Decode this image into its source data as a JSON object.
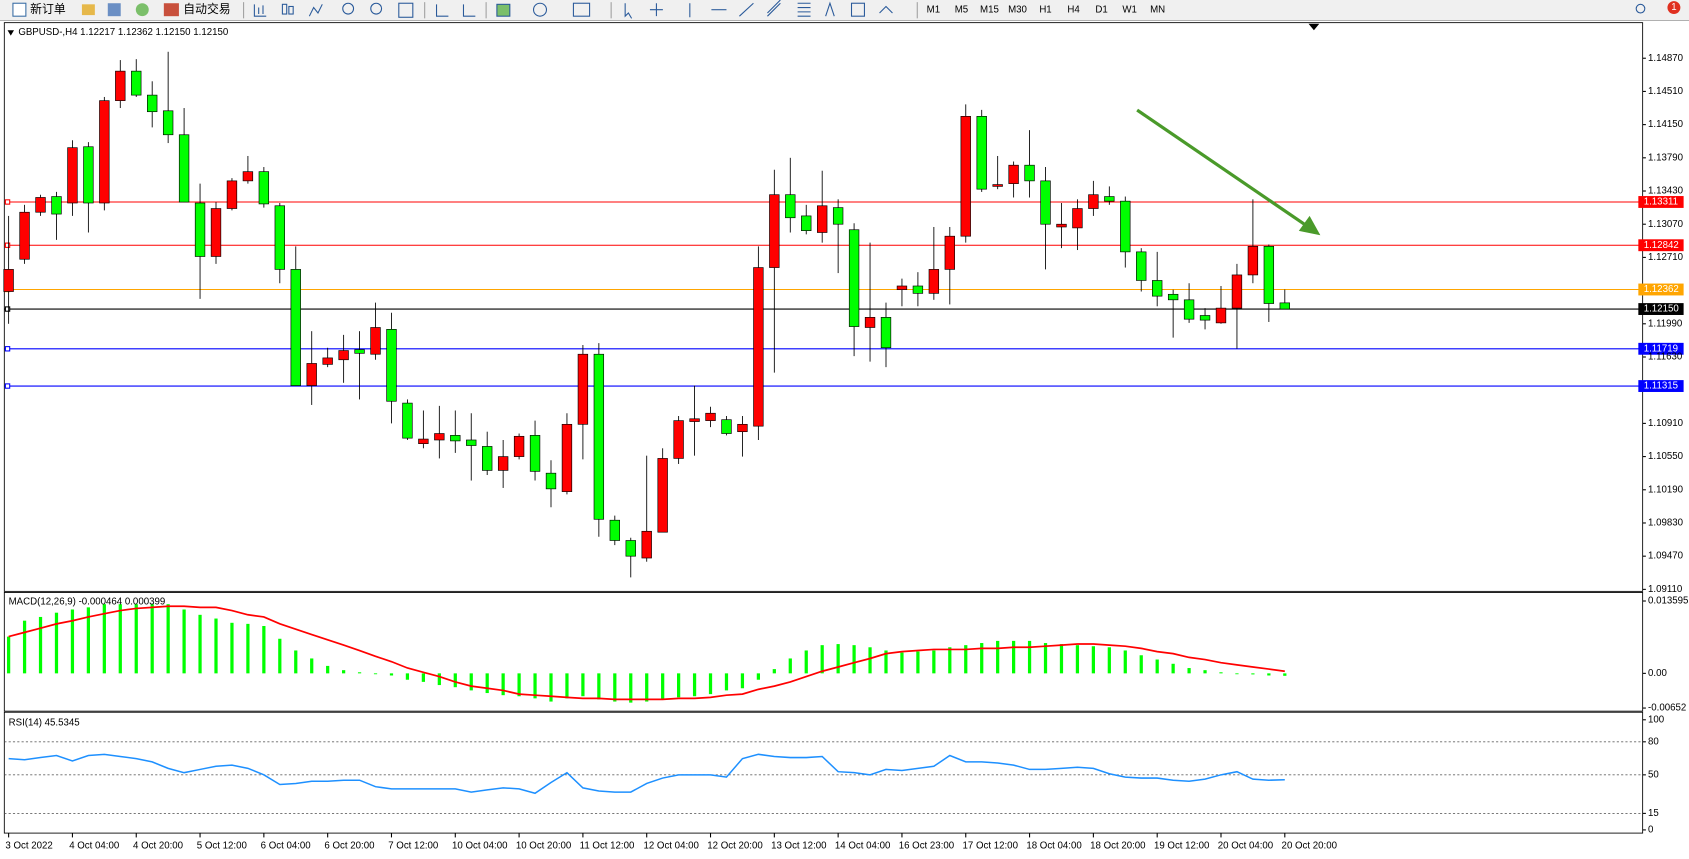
{
  "toolbar": {
    "new_order": "新订单",
    "auto_trading": "自动交易",
    "timeframes": [
      "M1",
      "M5",
      "M15",
      "M30",
      "H1",
      "H4",
      "D1",
      "W1",
      "MN"
    ],
    "notifications": "1"
  },
  "chart_data": [
    {
      "type": "candlestick",
      "title": "GBPUSD-,H4  1.12217 1.12362 1.12150 1.12150",
      "up_color": "#ff0000",
      "down_color": "#00ff00",
      "x": [
        "3 Oct 2022",
        null,
        null,
        null,
        "4 Oct 04:00",
        null,
        null,
        null,
        "4 Oct 20:00",
        null,
        null,
        null,
        "5 Oct 12:00",
        null,
        null,
        null,
        "6 Oct 04:00",
        null,
        null,
        null,
        "6 Oct 20:00",
        null,
        null,
        null,
        "7 Oct 12:00",
        null,
        null,
        null,
        "10 Oct 04:00",
        null,
        null,
        null,
        "10 Oct 20:00",
        null,
        null,
        null,
        "11 Oct 12:00",
        null,
        null,
        null,
        "12 Oct 04:00",
        null,
        null,
        null,
        "12 Oct 20:00",
        null,
        null,
        null,
        "13 Oct 12:00",
        null,
        null,
        null,
        "14 Oct 04:00",
        null,
        null,
        null,
        "16 Oct 23:00",
        null,
        null,
        null,
        "17 Oct 12:00",
        null,
        null,
        null,
        "18 Oct 04:00",
        null,
        null,
        null,
        "18 Oct 20:00",
        null,
        null,
        null,
        "19 Oct 12:00",
        null,
        null,
        null,
        "20 Oct 04:00",
        null,
        null,
        null,
        "20 Oct 20:00"
      ],
      "open": [
        1.1234,
        1.1269,
        1.132,
        1.1337,
        1.133,
        1.1391,
        1.133,
        1.1441,
        1.1473,
        1.1447,
        1.143,
        1.1404,
        1.133,
        1.1272,
        1.1324,
        1.1354,
        1.1364,
        1.1327,
        1.1258,
        1.1132,
        1.1155,
        1.116,
        1.1171,
        1.1166,
        1.1193,
        1.1113,
        1.1069,
        1.1073,
        1.1078,
        1.1073,
        1.1066,
        1.104,
        1.1055,
        1.1078,
        1.1037,
        1.1017,
        1.109,
        1.1166,
        1.0986,
        1.0964,
        1.0945,
        1.0973,
        1.1053,
        1.1093,
        1.1094,
        1.1095,
        1.1082,
        1.1088,
        1.126,
        1.1339,
        1.1316,
        1.1298,
        1.1325,
        1.1301,
        1.1195,
        1.1206,
        1.1236,
        1.124,
        1.1232,
        1.1258,
        1.1294,
        1.1424,
        1.1348,
        1.1351,
        1.1371,
        1.1354,
        1.1304,
        1.1303,
        1.1324,
        1.1337,
        1.1332,
        1.1277,
        1.1246,
        1.1231,
        1.1225,
        1.1208,
        1.12,
        1.1216,
        1.1252,
        1.1283,
        1.12217
      ],
      "high": [
        1.1316,
        1.1328,
        1.1339,
        1.1342,
        1.1398,
        1.1396,
        1.1445,
        1.1485,
        1.1486,
        1.1462,
        1.1494,
        1.1433,
        1.1351,
        1.1331,
        1.1357,
        1.1381,
        1.1369,
        1.133,
        1.1283,
        1.1191,
        1.1173,
        1.1187,
        1.1191,
        1.1222,
        1.1211,
        1.1117,
        1.1105,
        1.111,
        1.1105,
        1.1102,
        1.1082,
        1.1073,
        1.108,
        1.1094,
        1.1051,
        1.1102,
        1.1176,
        1.1178,
        1.0991,
        1.0967,
        1.1056,
        1.1064,
        1.1099,
        1.1132,
        1.1109,
        1.1099,
        1.1099,
        1.1283,
        1.1366,
        1.1379,
        1.1328,
        1.1365,
        1.1334,
        1.1308,
        1.1287,
        1.1222,
        1.1248,
        1.1255,
        1.1304,
        1.1304,
        1.1437,
        1.1431,
        1.1381,
        1.1375,
        1.1409,
        1.1369,
        1.133,
        1.1334,
        1.1354,
        1.1348,
        1.1337,
        1.1281,
        1.1277,
        1.1236,
        1.1243,
        1.1216,
        1.124,
        1.1264,
        1.1334,
        1.1285,
        1.12362
      ],
      "low": [
        1.1199,
        1.1264,
        1.1316,
        1.129,
        1.1316,
        1.1298,
        1.1322,
        1.1433,
        1.1445,
        1.1412,
        1.1395,
        1.1331,
        1.1226,
        1.1264,
        1.1322,
        1.1351,
        1.1325,
        1.1243,
        1.1132,
        1.1111,
        1.1152,
        1.1135,
        1.1117,
        1.116,
        1.1091,
        1.1073,
        1.1064,
        1.1053,
        1.1059,
        1.1029,
        1.1035,
        1.1021,
        1.1052,
        1.1029,
        1.1,
        1.1014,
        1.1052,
        1.0968,
        1.0959,
        1.0924,
        1.0941,
        1.0973,
        1.1047,
        1.1056,
        1.1087,
        1.1078,
        1.1055,
        1.1073,
        1.1146,
        1.1298,
        1.1296,
        1.1287,
        1.1254,
        1.1164,
        1.1158,
        1.1152,
        1.1218,
        1.1218,
        1.1225,
        1.122,
        1.1287,
        1.1342,
        1.1345,
        1.1336,
        1.1336,
        1.1258,
        1.1281,
        1.1279,
        1.1316,
        1.1328,
        1.126,
        1.1234,
        1.1218,
        1.1184,
        1.12,
        1.1193,
        1.1199,
        1.1172,
        1.1243,
        1.1201,
        1.1215
      ],
      "close": [
        1.1258,
        1.132,
        1.1336,
        1.1318,
        1.139,
        1.133,
        1.1441,
        1.1473,
        1.1447,
        1.1429,
        1.1404,
        1.1331,
        1.1272,
        1.1324,
        1.1354,
        1.1364,
        1.1329,
        1.1258,
        1.1132,
        1.1156,
        1.1162,
        1.117,
        1.1167,
        1.1195,
        1.1115,
        1.1075,
        1.1074,
        1.108,
        1.1072,
        1.1067,
        1.104,
        1.1055,
        1.1077,
        1.1039,
        1.102,
        1.109,
        1.1166,
        1.0987,
        1.0964,
        1.0947,
        1.0974,
        1.1053,
        1.1094,
        1.1096,
        1.1102,
        1.108,
        1.109,
        1.126,
        1.1339,
        1.1314,
        1.13,
        1.1327,
        1.1307,
        1.1196,
        1.1206,
        1.1173,
        1.124,
        1.1232,
        1.1258,
        1.1294,
        1.1424,
        1.1345,
        1.135,
        1.1371,
        1.1354,
        1.1307,
        1.1307,
        1.1324,
        1.1339,
        1.1332,
        1.1277,
        1.1246,
        1.1229,
        1.1225,
        1.1204,
        1.1203,
        1.1216,
        1.1252,
        1.1283,
        1.1221,
        1.1215
      ],
      "ylim": [
        1.091,
        1.15244
      ],
      "yticks": [
        {
          "value": 1.1487,
          "label": "1.14870"
        },
        {
          "value": 1.1451,
          "label": "1.14510"
        },
        {
          "value": 1.1415,
          "label": "1.14150"
        },
        {
          "value": 1.1379,
          "label": "1.13790"
        },
        {
          "value": 1.1343,
          "label": "1.13430"
        },
        {
          "value": 1.1307,
          "label": "1.13070"
        },
        {
          "value": 1.1271,
          "label": "1.12710"
        },
        {
          "value": 1.1199,
          "label": "1.11990"
        },
        {
          "value": 1.1163,
          "label": "1.11630"
        },
        {
          "value": 1.1091,
          "label": "1.10910"
        },
        {
          "value": 1.1055,
          "label": "1.10550"
        },
        {
          "value": 1.1019,
          "label": "1.10190"
        },
        {
          "value": 1.0983,
          "label": "1.09830"
        },
        {
          "value": 1.0947,
          "label": "1.09470"
        },
        {
          "value": 1.0911,
          "label": "1.09110"
        }
      ],
      "levels": [
        {
          "value": 1.13311,
          "label": "1.13311",
          "color": "#ff0000"
        },
        {
          "value": 1.12842,
          "label": "1.12842",
          "color": "#ff0000"
        },
        {
          "value": 1.12362,
          "label": "1.12362",
          "color": "#ffa500"
        },
        {
          "value": 1.1215,
          "label": "1.12150",
          "color": "#000000"
        },
        {
          "value": 1.11719,
          "label": "1.11719",
          "color": "#0000ff"
        },
        {
          "value": 1.11315,
          "label": "1.11315",
          "color": "#0000ff"
        }
      ]
    },
    {
      "type": "macd",
      "title": "MACD(12,26,9) -0.000464 0.000399",
      "series": [
        {
          "kind": "bar",
          "color": "#00ff00",
          "values": [
            0.0069,
            0.0099,
            0.0106,
            0.0114,
            0.012,
            0.0124,
            0.013,
            0.013,
            0.013,
            0.013,
            0.013,
            0.012,
            0.011,
            0.0103,
            0.0095,
            0.0093,
            0.0089,
            0.0065,
            0.0043,
            0.0028,
            0.0014,
            0.0006,
            0.0002,
            -0.0001,
            -0.0004,
            -0.0012,
            -0.0016,
            -0.0022,
            -0.0026,
            -0.0032,
            -0.0037,
            -0.0041,
            -0.0043,
            -0.0047,
            -0.0053,
            -0.0047,
            -0.0043,
            -0.0049,
            -0.0053,
            -0.0055,
            -0.0053,
            -0.0049,
            -0.0045,
            -0.0043,
            -0.0039,
            -0.0032,
            -0.0028,
            -0.0012,
            0.0008,
            0.0028,
            0.0043,
            0.0053,
            0.0055,
            0.0053,
            0.0049,
            0.0043,
            0.0039,
            0.0041,
            0.0043,
            0.0049,
            0.0053,
            0.0057,
            0.0061,
            0.0061,
            0.0061,
            0.0057,
            0.0055,
            0.0053,
            0.0051,
            0.0049,
            0.0043,
            0.0034,
            0.0026,
            0.0018,
            0.001,
            0.0006,
            0.0002,
            -0.0001,
            -0.0002,
            -0.0004,
            -0.000464
          ]
        },
        {
          "kind": "line",
          "color": "#ff0000",
          "values": [
            0.0069,
            0.0077,
            0.0085,
            0.0093,
            0.0099,
            0.0106,
            0.0112,
            0.0118,
            0.0122,
            0.0124,
            0.0126,
            0.0126,
            0.0124,
            0.0124,
            0.0118,
            0.011,
            0.0106,
            0.0093,
            0.0083,
            0.0073,
            0.0063,
            0.0053,
            0.0043,
            0.0032,
            0.0022,
            0.001,
            0.0002,
            -0.0006,
            -0.0016,
            -0.0024,
            -0.0028,
            -0.0032,
            -0.0039,
            -0.0041,
            -0.0043,
            -0.0045,
            -0.0047,
            -0.0047,
            -0.0049,
            -0.0049,
            -0.0049,
            -0.0049,
            -0.0047,
            -0.0047,
            -0.0045,
            -0.0041,
            -0.0039,
            -0.003,
            -0.0024,
            -0.0016,
            -0.0006,
            0.0004,
            0.0012,
            0.002,
            0.0028,
            0.0037,
            0.0041,
            0.0043,
            0.0045,
            0.0045,
            0.0045,
            0.0047,
            0.0047,
            0.0049,
            0.0049,
            0.0051,
            0.0053,
            0.0055,
            0.0055,
            0.0053,
            0.0051,
            0.0047,
            0.0041,
            0.0037,
            0.003,
            0.0026,
            0.002,
            0.0016,
            0.0012,
            0.0008,
            0.000399
          ]
        }
      ],
      "ylim": [
        -0.0069,
        0.015
      ],
      "yticks": [
        {
          "value": 0.013595,
          "label": "0.013595"
        },
        {
          "value": 0,
          "label": "0.00"
        },
        {
          "value": -0.00652,
          "label": "-0.00652"
        }
      ]
    },
    {
      "type": "line",
      "title": "RSI(14) 45.5345",
      "color": "#1e90ff",
      "values": [
        64.7,
        63.7,
        65.7,
        67.6,
        62.7,
        67.6,
        68.6,
        66.7,
        64.7,
        61.8,
        55.9,
        52.0,
        54.9,
        57.8,
        58.8,
        55.9,
        50.0,
        41.2,
        42.2,
        44.1,
        44.1,
        45.1,
        45.1,
        39.2,
        37.3,
        37.3,
        37.3,
        37.3,
        37.3,
        34.3,
        36.3,
        38.2,
        37.3,
        33.3,
        43.1,
        52.0,
        38.2,
        35.3,
        34.3,
        34.3,
        42.2,
        47.1,
        50.0,
        50.0,
        50.0,
        48.0,
        64.7,
        68.6,
        66.7,
        65.7,
        65.7,
        66.7,
        52.9,
        52.0,
        50.0,
        54.9,
        53.9,
        55.9,
        57.8,
        67.6,
        61.8,
        61.8,
        60.8,
        58.8,
        54.9,
        54.9,
        55.9,
        56.9,
        55.9,
        51.0,
        48.0,
        47.1,
        47.1,
        45.1,
        44.1,
        46.1,
        50.0,
        52.9,
        46.1,
        45.1,
        45.5345
      ],
      "ylim": [
        -2.9,
        104.9
      ],
      "yticks": [
        100,
        80,
        50,
        15,
        0
      ],
      "levels": [
        80,
        50,
        15
      ]
    }
  ]
}
